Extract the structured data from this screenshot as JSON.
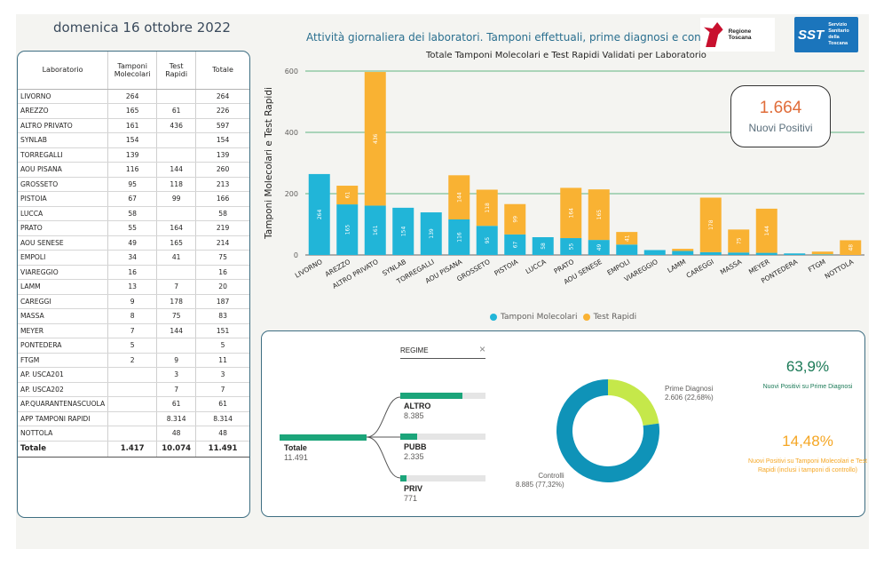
{
  "header": {
    "date": "domenica 16 ottobre 2022",
    "subtitle": "Attività giornaliera dei laboratori. Tamponi effettuali, prime diagnosi e controlli",
    "logo_rt": "Regione Toscana",
    "logo_sst": "SST",
    "logo_sst_text": "Servizio Sanitario della Toscana"
  },
  "table": {
    "headers": [
      "Laboratorio",
      "Tamponi Molecolari",
      "Test Rapidi",
      "Totale"
    ],
    "rows": [
      [
        "LIVORNO",
        "264",
        "",
        "264"
      ],
      [
        "AREZZO",
        "165",
        "61",
        "226"
      ],
      [
        "ALTRO PRIVATO",
        "161",
        "436",
        "597"
      ],
      [
        "SYNLAB",
        "154",
        "",
        "154"
      ],
      [
        "TORREGALLI",
        "139",
        "",
        "139"
      ],
      [
        "AOU PISANA",
        "116",
        "144",
        "260"
      ],
      [
        "GROSSETO",
        "95",
        "118",
        "213"
      ],
      [
        "PISTOIA",
        "67",
        "99",
        "166"
      ],
      [
        "LUCCA",
        "58",
        "",
        "58"
      ],
      [
        "PRATO",
        "55",
        "164",
        "219"
      ],
      [
        "AOU SENESE",
        "49",
        "165",
        "214"
      ],
      [
        "EMPOLI",
        "34",
        "41",
        "75"
      ],
      [
        "VIAREGGIO",
        "16",
        "",
        "16"
      ],
      [
        "LAMM",
        "13",
        "7",
        "20"
      ],
      [
        "CAREGGI",
        "9",
        "178",
        "187"
      ],
      [
        "MASSA",
        "8",
        "75",
        "83"
      ],
      [
        "MEYER",
        "7",
        "144",
        "151"
      ],
      [
        "PONTEDERA",
        "5",
        "",
        "5"
      ],
      [
        "FTGM",
        "2",
        "9",
        "11"
      ],
      [
        "AP. USCA201",
        "",
        "3",
        "3"
      ],
      [
        "AP. USCA202",
        "",
        "7",
        "7"
      ],
      [
        "AP.QUARANTENASCUOLA",
        "",
        "61",
        "61"
      ],
      [
        "APP TAMPONI RAPIDI",
        "",
        "8.314",
        "8.314"
      ],
      [
        "NOTTOLA",
        "",
        "48",
        "48"
      ]
    ],
    "total": [
      "Totale",
      "1.417",
      "10.074",
      "11.491"
    ]
  },
  "chart_data": {
    "type": "bar",
    "title": "Totale Tamponi Molecolari e Test Rapidi Validati per Laboratorio",
    "ylabel": "Tamponi Molecolari e Test Rapidi",
    "ylim": [
      0,
      600
    ],
    "yticks": [
      "0",
      "200",
      "400",
      "600"
    ],
    "categories": [
      "LIVORNO",
      "AREZZO",
      "ALTRO PRIVATO",
      "SYNLAB",
      "TORREGALLI",
      "AOU PISANA",
      "GROSSETO",
      "PISTOIA",
      "LUCCA",
      "PRATO",
      "AOU SENESE",
      "EMPOLI",
      "VIAREGGIO",
      "LAMM",
      "CAREGGI",
      "MASSA",
      "MEYER",
      "PONTEDERA",
      "FTGM",
      "NOTTOLA"
    ],
    "series": [
      {
        "name": "Tamponi Molecolari",
        "color": "#21b5d8",
        "values": [
          264,
          165,
          161,
          154,
          139,
          116,
          95,
          67,
          58,
          55,
          49,
          34,
          16,
          13,
          9,
          8,
          7,
          5,
          2,
          0
        ]
      },
      {
        "name": "Test Rapidi",
        "color": "#f9b233",
        "values": [
          0,
          61,
          436,
          0,
          0,
          144,
          118,
          99,
          0,
          164,
          165,
          41,
          0,
          7,
          178,
          75,
          144,
          0,
          9,
          48
        ]
      }
    ],
    "grid": true,
    "legend": "bottom"
  },
  "kpi": {
    "value": "1.664",
    "label": "Nuovi Positivi"
  },
  "tree": {
    "filter_label": "REGIME",
    "root_label": "Totale",
    "root_value": "11.491",
    "nodes": [
      {
        "label": "ALTRO",
        "value": "8.385",
        "fraction": 0.73
      },
      {
        "label": "PUBB",
        "value": "2.335",
        "fraction": 0.2
      },
      {
        "label": "PRIV",
        "value": "771",
        "fraction": 0.07
      }
    ]
  },
  "donut": {
    "slices": [
      {
        "label": "Prime Diagnosi",
        "value": 2606,
        "text": "2.606 (22,68%)",
        "color": "#c5e84a"
      },
      {
        "label": "Controlli",
        "value": 8885,
        "text": "8.885 (77,32%)",
        "color": "#0f93b8"
      }
    ]
  },
  "stats": {
    "pct1": "63,9%",
    "pct1_desc": "Nuovi Positivi su Prime Diagnosi",
    "pct2": "14,48%",
    "pct2_desc": "Nuovi Positivi su Tamponi Molecolari e Test Rapidi (inclusi i tamponi di controllo)"
  }
}
